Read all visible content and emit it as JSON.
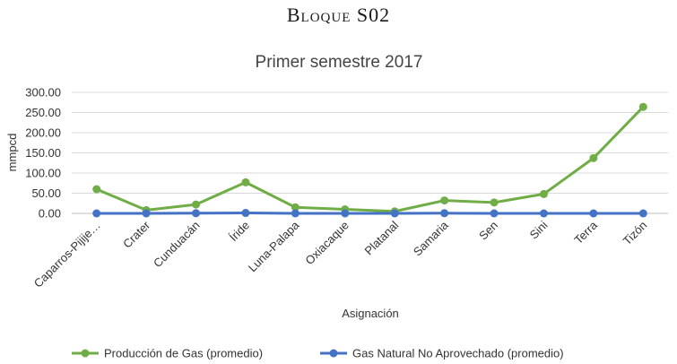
{
  "page": {
    "heading": "Bloque S02"
  },
  "chart_data": {
    "type": "line",
    "title": "Primer semestre 2017",
    "xlabel": "Asignación",
    "ylabel": "mmpcd",
    "categories": [
      "Caparros-Pijije…",
      "Crater",
      "Cunduacán",
      "Íride",
      "Luna-Palapa",
      "Oxiacaque",
      "Platanal",
      "Samaria",
      "Sen",
      "Sini",
      "Terra",
      "Tizón"
    ],
    "yticks": [
      "0.00",
      "50.00",
      "100.00",
      "150.00",
      "200.00",
      "250.00",
      "300.00"
    ],
    "ylim": [
      0,
      300
    ],
    "grid": true,
    "legend_position": "bottom",
    "series": [
      {
        "name": "Producción de Gas (promedio)",
        "color": "#70ad47",
        "values": [
          60,
          8,
          22,
          77,
          15,
          10,
          5,
          32,
          27,
          48,
          137,
          264
        ]
      },
      {
        "name": "Gas Natural No Aprovechado  (promedio)",
        "color": "#4472c4",
        "values": [
          0,
          0,
          0.5,
          1,
          0,
          0,
          0,
          0.5,
          0,
          0,
          0,
          0
        ]
      }
    ]
  }
}
